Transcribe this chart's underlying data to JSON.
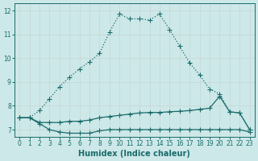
{
  "xlabel": "Humidex (Indice chaleur)",
  "bg_color": "#cde8e8",
  "grid_color": "#c8dada",
  "line_color": "#1a6b6b",
  "xlim": [
    -0.5,
    23.5
  ],
  "ylim": [
    6.7,
    12.3
  ],
  "xticks": [
    0,
    1,
    2,
    3,
    4,
    5,
    6,
    7,
    8,
    9,
    10,
    11,
    12,
    13,
    14,
    15,
    16,
    17,
    18,
    19,
    20,
    21,
    22,
    23
  ],
  "yticks": [
    7,
    8,
    9,
    10,
    11,
    12
  ],
  "line1_x": [
    0,
    1,
    2,
    3,
    4,
    5,
    6,
    7,
    8,
    9,
    10,
    11,
    12,
    13,
    14,
    15,
    16,
    17,
    18,
    19,
    20,
    21,
    22,
    23
  ],
  "line1_y": [
    7.5,
    7.5,
    7.8,
    8.3,
    8.8,
    9.2,
    9.55,
    9.85,
    10.2,
    11.1,
    11.85,
    11.65,
    11.65,
    11.6,
    11.85,
    11.2,
    10.5,
    9.8,
    9.3,
    8.7,
    8.5,
    7.75,
    7.7,
    7.0
  ],
  "line1_style": "dotted",
  "line2_x": [
    0,
    1,
    2,
    3,
    4,
    5,
    6,
    7,
    8,
    9,
    10,
    11,
    12,
    13,
    14,
    15,
    16,
    17,
    18,
    19,
    20,
    21,
    22,
    23
  ],
  "line2_y": [
    7.5,
    7.5,
    7.3,
    7.3,
    7.3,
    7.35,
    7.35,
    7.4,
    7.5,
    7.55,
    7.6,
    7.65,
    7.7,
    7.72,
    7.72,
    7.75,
    7.77,
    7.8,
    7.85,
    7.9,
    8.4,
    7.75,
    7.7,
    7.0
  ],
  "line2_style": "solid",
  "line3_x": [
    0,
    1,
    2,
    3,
    4,
    5,
    6,
    7,
    8,
    9,
    10,
    11,
    12,
    13,
    14,
    15,
    16,
    17,
    18,
    19,
    20,
    21,
    22,
    23
  ],
  "line3_y": [
    7.5,
    7.5,
    7.25,
    7.0,
    6.9,
    6.85,
    6.85,
    6.85,
    6.95,
    7.0,
    7.0,
    7.0,
    7.0,
    7.0,
    7.0,
    7.0,
    7.0,
    7.0,
    7.0,
    7.0,
    7.0,
    7.0,
    7.0,
    6.9
  ],
  "line3_style": "solid"
}
